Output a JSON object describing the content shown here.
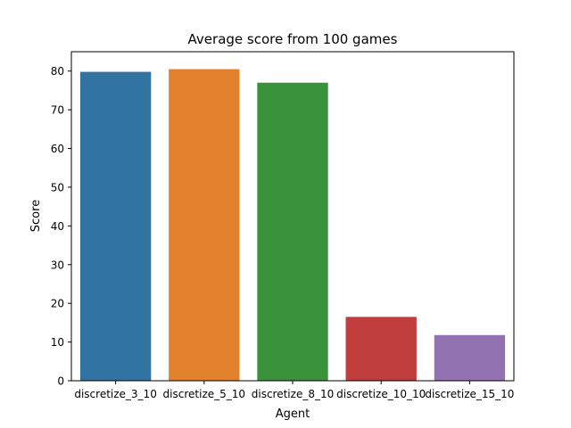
{
  "chart_data": {
    "type": "bar",
    "title": "Average score from 100 games",
    "xlabel": "Agent",
    "ylabel": "Score",
    "categories": [
      "discretize_3_10",
      "discretize_5_10",
      "discretize_8_10",
      "discretize_10_10",
      "discretize_15_10"
    ],
    "values": [
      79.8,
      80.5,
      77.0,
      16.5,
      11.8
    ],
    "colors": [
      "#3274a1",
      "#e1812c",
      "#3a923a",
      "#c03d3e",
      "#9372b2"
    ],
    "ylim": [
      0,
      85
    ],
    "yticks": [
      0,
      10,
      20,
      30,
      40,
      50,
      60,
      70,
      80
    ],
    "grid": false,
    "legend": "none"
  }
}
